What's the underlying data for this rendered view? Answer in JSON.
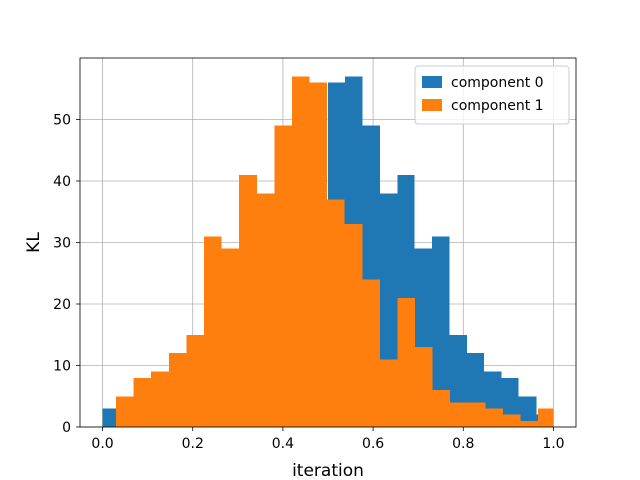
{
  "chart_data": {
    "type": "bar",
    "subtype": "overlaid-histogram",
    "xlabel": "iteration",
    "ylabel": "KL",
    "xlim": [
      -0.05,
      1.05
    ],
    "ylim": [
      0,
      60
    ],
    "xticks": [
      0.0,
      0.2,
      0.4,
      0.6,
      0.8,
      1.0
    ],
    "xtick_labels": [
      "0.0",
      "0.2",
      "0.4",
      "0.6",
      "0.8",
      "1.0"
    ],
    "yticks": [
      0,
      10,
      20,
      30,
      40,
      50
    ],
    "ytick_labels": [
      "0",
      "10",
      "20",
      "30",
      "40",
      "50"
    ],
    "grid": true,
    "legend_position": "top-right",
    "series": [
      {
        "name": "component 0",
        "color": "#1f77b4",
        "bins": [
          [
            0.5,
            0.538,
            56
          ],
          [
            0.538,
            0.577,
            57
          ],
          [
            0.577,
            0.615,
            49
          ],
          [
            0.615,
            0.654,
            38
          ],
          [
            0.654,
            0.692,
            41
          ],
          [
            0.692,
            0.731,
            29
          ],
          [
            0.731,
            0.769,
            31
          ],
          [
            0.769,
            0.808,
            15
          ],
          [
            0.808,
            0.846,
            12
          ],
          [
            0.846,
            0.885,
            9
          ],
          [
            0.885,
            0.923,
            8
          ],
          [
            0.923,
            0.962,
            5
          ],
          [
            0.962,
            1.0,
            2
          ],
          [
            0.0,
            0.03,
            3
          ]
        ]
      },
      {
        "name": "component 1",
        "color": "#ff7f0e",
        "bins": [
          [
            0.03,
            0.069,
            5
          ],
          [
            0.069,
            0.108,
            8
          ],
          [
            0.108,
            0.147,
            9
          ],
          [
            0.147,
            0.186,
            12
          ],
          [
            0.186,
            0.225,
            15
          ],
          [
            0.225,
            0.264,
            31
          ],
          [
            0.264,
            0.303,
            29
          ],
          [
            0.303,
            0.342,
            41
          ],
          [
            0.342,
            0.381,
            38
          ],
          [
            0.381,
            0.42,
            49
          ],
          [
            0.42,
            0.459,
            57
          ],
          [
            0.459,
            0.498,
            56
          ],
          [
            0.498,
            0.537,
            37
          ],
          [
            0.537,
            0.576,
            33
          ],
          [
            0.576,
            0.615,
            24
          ],
          [
            0.615,
            0.654,
            11
          ],
          [
            0.654,
            0.693,
            21
          ],
          [
            0.693,
            0.732,
            13
          ],
          [
            0.732,
            0.771,
            6
          ],
          [
            0.771,
            0.81,
            4
          ],
          [
            0.81,
            0.849,
            4
          ],
          [
            0.849,
            0.888,
            3
          ],
          [
            0.888,
            0.927,
            2
          ],
          [
            0.927,
            0.966,
            1
          ],
          [
            0.966,
            1.0,
            3
          ]
        ]
      }
    ]
  }
}
